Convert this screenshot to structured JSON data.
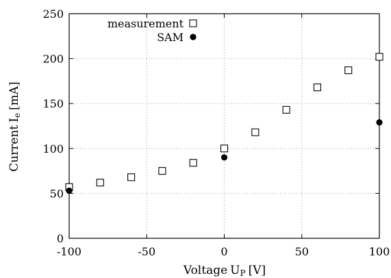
{
  "chart_data": {
    "type": "scatter",
    "title": "",
    "xlabel": "Voltage",
    "xlabel_sub": "P",
    "xlabel_unit": "[V]",
    "ylabel": "Current",
    "ylabel_sub": "e",
    "ylabel_unit": "[mA]",
    "xlim": [
      -100,
      100
    ],
    "ylim": [
      0,
      250
    ],
    "x_ticks": [
      -100,
      -50,
      0,
      50,
      100
    ],
    "y_ticks": [
      0,
      50,
      100,
      150,
      200,
      250
    ],
    "grid": true,
    "legend_position": "top-left",
    "series": [
      {
        "name": "measurement",
        "marker": "open-square",
        "color": "#000000",
        "points": [
          {
            "x": -100,
            "y": 57
          },
          {
            "x": -80,
            "y": 62
          },
          {
            "x": -60,
            "y": 68
          },
          {
            "x": -40,
            "y": 75
          },
          {
            "x": -20,
            "y": 84
          },
          {
            "x": 0,
            "y": 100
          },
          {
            "x": 20,
            "y": 118
          },
          {
            "x": 40,
            "y": 143
          },
          {
            "x": 60,
            "y": 168
          },
          {
            "x": 80,
            "y": 187
          },
          {
            "x": 100,
            "y": 202
          }
        ]
      },
      {
        "name": "SAM",
        "marker": "filled-circle",
        "color": "#000000",
        "points": [
          {
            "x": -100,
            "y": 53
          },
          {
            "x": 0,
            "y": 90
          },
          {
            "x": 100,
            "y": 129
          }
        ]
      }
    ]
  }
}
